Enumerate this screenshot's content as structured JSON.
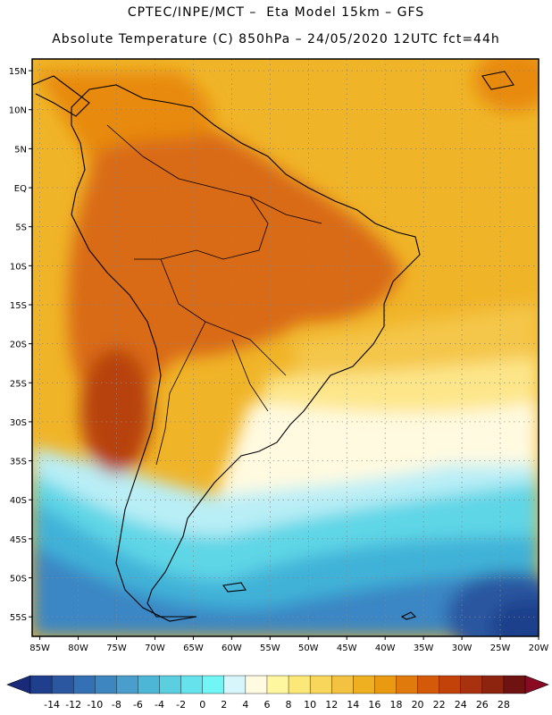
{
  "header": {
    "line1": "CPTEC/INPE/MCT –  Eta Model 15km – GFS",
    "line2": "Absolute Temperature (C) 850hPa – 24/05/2020 12UTC fct=44h"
  },
  "axes": {
    "lat_labels": [
      "15N",
      "10N",
      "5N",
      "EQ",
      "5S",
      "10S",
      "15S",
      "20S",
      "25S",
      "30S",
      "35S",
      "40S",
      "45S",
      "50S",
      "55S"
    ],
    "lat_values": [
      15,
      10,
      5,
      0,
      -5,
      -10,
      -15,
      -20,
      -25,
      -30,
      -35,
      -40,
      -45,
      -50,
      -55
    ],
    "lon_labels": [
      "85W",
      "80W",
      "75W",
      "70W",
      "65W",
      "60W",
      "55W",
      "50W",
      "45W",
      "40W",
      "35W",
      "30W",
      "25W",
      "20W"
    ],
    "lon_values": [
      -85,
      -80,
      -75,
      -70,
      -65,
      -60,
      -55,
      -50,
      -45,
      -40,
      -35,
      -30,
      -25,
      -20
    ],
    "lat_range": [
      -57.5,
      16.5
    ],
    "lon_range": [
      -86,
      -20
    ]
  },
  "colorbar": {
    "labels": [
      "-14",
      "-12",
      "-10",
      "-8",
      "-6",
      "-4",
      "-2",
      "0",
      "2",
      "4",
      "6",
      "8",
      "10",
      "12",
      "14",
      "16",
      "18",
      "20",
      "22",
      "24",
      "26",
      "28"
    ],
    "colors": [
      "#1f3f8c",
      "#2b56a0",
      "#3470b4",
      "#3d86c0",
      "#4a9ecb",
      "#4db6d6",
      "#5bcfe0",
      "#66e2ec",
      "#72f5f5",
      "#d6f6fb",
      "#fffae0",
      "#fff7a0",
      "#fce878",
      "#f8d65c",
      "#f2c240",
      "#eeb020",
      "#ea9a10",
      "#e07a0c",
      "#d45a0a",
      "#c2420a",
      "#a83210",
      "#8c2410",
      "#6e1212"
    ],
    "below_color": "#1a2a78",
    "above_color": "#8a0a22"
  },
  "map_colors": {
    "ocean_north": "#f0b428",
    "land_hot": "#d96a12",
    "coast_hot": "#e88a10",
    "warm": "#f4c64a",
    "mild": "#fde68a",
    "neutral": "#fffae0",
    "cool": "#b9eef6",
    "cold": "#5fd6e6",
    "colder": "#3fb2d8",
    "cold_core": "#3a86c4",
    "deep_cold": "#2b56a0",
    "core": "#1f3f8c",
    "hot_core": "#b8420c",
    "coastline": "#000000",
    "grid": "#888888"
  }
}
